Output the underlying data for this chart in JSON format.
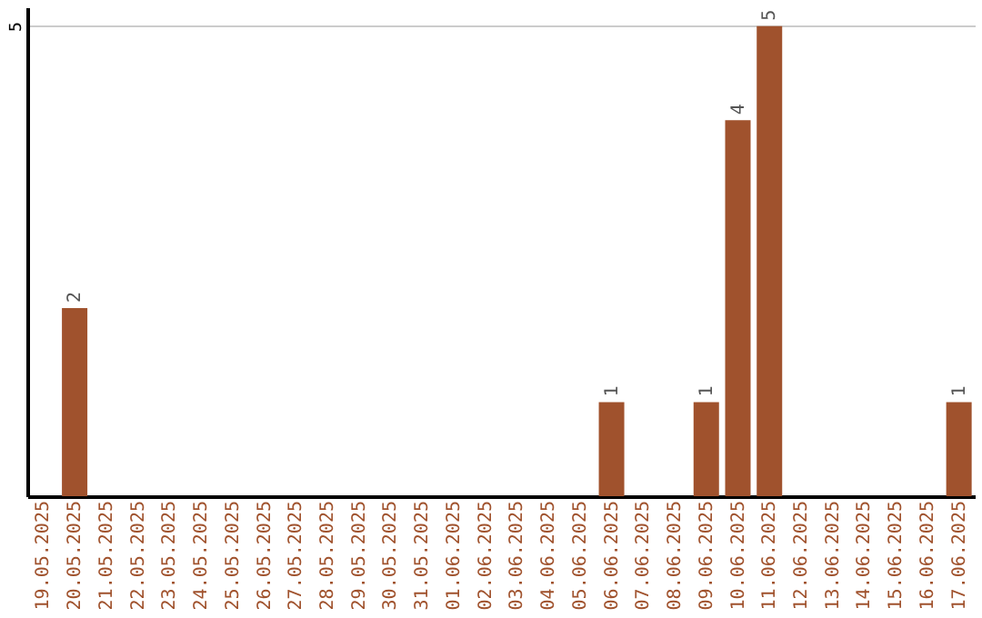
{
  "chart_data": {
    "type": "bar",
    "categories": [
      "19.05.2025",
      "20.05.2025",
      "21.05.2025",
      "22.05.2025",
      "23.05.2025",
      "24.05.2025",
      "25.05.2025",
      "26.05.2025",
      "27.05.2025",
      "28.05.2025",
      "29.05.2025",
      "30.05.2025",
      "31.05.2025",
      "01.06.2025",
      "02.06.2025",
      "03.06.2025",
      "04.06.2025",
      "05.06.2025",
      "06.06.2025",
      "07.06.2025",
      "08.06.2025",
      "09.06.2025",
      "10.06.2025",
      "11.06.2025",
      "12.06.2025",
      "13.06.2025",
      "14.06.2025",
      "15.06.2025",
      "16.06.2025",
      "17.06.2025"
    ],
    "values": [
      0,
      2,
      0,
      0,
      0,
      0,
      0,
      0,
      0,
      0,
      0,
      0,
      0,
      0,
      0,
      0,
      0,
      0,
      1,
      0,
      0,
      1,
      4,
      5,
      0,
      0,
      0,
      0,
      0,
      1
    ],
    "value_labels": [
      null,
      "2",
      null,
      null,
      null,
      null,
      null,
      null,
      null,
      null,
      null,
      null,
      null,
      null,
      null,
      null,
      null,
      null,
      "1",
      null,
      null,
      "1",
      "4",
      "5",
      null,
      null,
      null,
      null,
      null,
      "1"
    ],
    "color": "#a0522d",
    "ylim": [
      0,
      5.2
    ],
    "yticks": [
      5
    ],
    "grid": "y"
  }
}
